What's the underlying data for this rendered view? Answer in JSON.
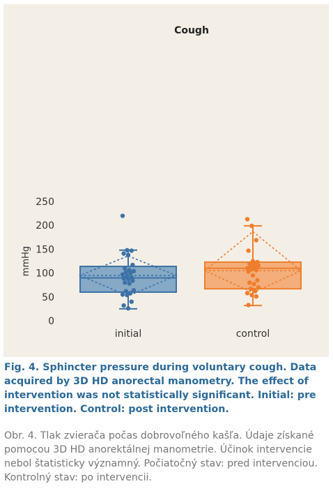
{
  "chart_data": {
    "type": "box",
    "title": "Cough",
    "xlabel": "",
    "ylabel": "mmHg",
    "ylim": [
      0,
      250
    ],
    "yticks": [
      0,
      50,
      100,
      150,
      200,
      250
    ],
    "categories": [
      "initial",
      "control"
    ],
    "grid": false,
    "boxes": [
      {
        "category": "initial",
        "color": "#3d72a6",
        "fill": "#86a9c6",
        "min": 25,
        "q1": 60,
        "median": 90,
        "mean": 95,
        "q3": 114,
        "max": 148,
        "points": [
          220,
          148,
          147,
          141,
          138,
          117,
          110,
          106,
          104,
          102,
          100,
          97,
          94,
          91,
          89,
          87,
          84,
          80,
          78,
          64,
          62,
          58,
          55,
          54,
          40,
          32,
          26
        ]
      },
      {
        "category": "control",
        "color": "#ee7d2c",
        "fill": "#f3ae7b",
        "min": 32,
        "q1": 67,
        "median": 110,
        "mean": 105,
        "q3": 123,
        "max": 199,
        "points": [
          213,
          199,
          169,
          147,
          125,
          123,
          120,
          118,
          116,
          115,
          112,
          110,
          108,
          106,
          103,
          95,
          85,
          80,
          77,
          70,
          67,
          62,
          58,
          54,
          51,
          33
        ]
      }
    ]
  },
  "caption": {
    "english": "Fig. 4. Sphincter pressure during voluntary cough. Data acquired by 3D HD anorectal manometry. The effect of intervention was not statistically significant. Initial: pre intervention. Control: post intervention.",
    "slovak": "Obr. 4. Tlak zvierača počas dobrovoľného kašľa. Údaje získané pomocou 3D HD anorektálnej manometrie. Účinok intervencie nebol štatisticky významný. Počiatočný stav: pred intervenciou. Kontrolný stav: po intervencii."
  }
}
